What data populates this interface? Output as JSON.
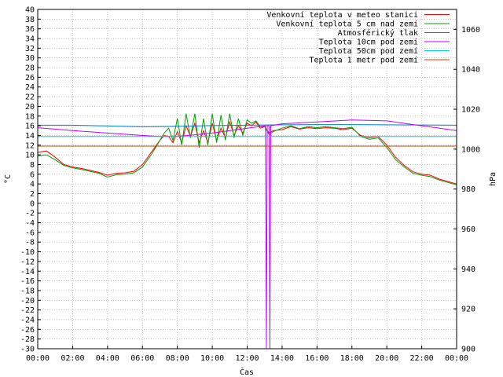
{
  "chart_data": {
    "type": "line",
    "xlabel": "Čas",
    "ylabel": "°C",
    "y2label": "hPa",
    "xlim": [
      0,
      24
    ],
    "ylim": [
      -30,
      40
    ],
    "y2lim": [
      900,
      1070
    ],
    "xticks": [
      "00:00",
      "02:00",
      "04:00",
      "06:00",
      "08:00",
      "10:00",
      "12:00",
      "14:00",
      "16:00",
      "18:00",
      "20:00",
      "22:00",
      "00:00"
    ],
    "yticks": [
      40,
      38,
      36,
      34,
      32,
      30,
      28,
      26,
      24,
      22,
      20,
      18,
      16,
      14,
      12,
      10,
      8,
      6,
      4,
      2,
      0,
      -2,
      -4,
      -6,
      -8,
      -10,
      -12,
      -14,
      -16,
      -18,
      -20,
      -22,
      -24,
      -26,
      -28,
      -30
    ],
    "y2ticks": [
      1060,
      1040,
      1020,
      1000,
      980,
      960,
      940,
      920,
      900
    ],
    "grid": true,
    "legend": "top-right",
    "series": [
      {
        "name": "Venkovní teplota v meteo stanici",
        "color": "#ff0000",
        "axis": "left",
        "x": [
          0,
          0.5,
          1,
          1.5,
          2,
          2.5,
          3,
          3.5,
          4,
          4.5,
          5,
          5.5,
          6,
          6.5,
          7,
          7.25,
          7.5,
          7.75,
          8,
          8.25,
          8.5,
          8.75,
          9,
          9.25,
          9.5,
          9.75,
          10,
          10.25,
          10.5,
          10.75,
          11,
          11.25,
          11.5,
          11.75,
          12,
          12.25,
          12.5,
          12.75,
          13,
          13.25,
          13.5,
          14,
          14.5,
          15,
          15.5,
          16,
          16.5,
          17,
          17.5,
          18,
          18.5,
          19,
          19.5,
          20,
          20.5,
          21,
          21.5,
          22,
          22.5,
          23,
          23.5,
          24
        ],
        "y": [
          10.5,
          10.8,
          9.5,
          8,
          7.5,
          7.2,
          6.8,
          6.4,
          5.8,
          6.2,
          6.3,
          6.6,
          8,
          10.5,
          13,
          14,
          13.8,
          12.5,
          14.8,
          12.5,
          16,
          13.8,
          16.5,
          12.5,
          15,
          12.5,
          16.5,
          13,
          15.5,
          13.5,
          16.8,
          14,
          16,
          14.5,
          16.5,
          16,
          16.8,
          15.5,
          15.8,
          14.5,
          15,
          15.2,
          15.8,
          15.3,
          15.6,
          15.4,
          15.6,
          15.5,
          15.2,
          15.5,
          14,
          13.5,
          13.8,
          12,
          9.5,
          7.8,
          6.5,
          6,
          5.8,
          5,
          4.5,
          4
        ]
      },
      {
        "name": "Venkovní teplota 5 cm nad zemí",
        "color": "#00a000",
        "axis": "left",
        "x": [
          0,
          0.5,
          1,
          1.5,
          2,
          2.5,
          3,
          3.5,
          4,
          4.5,
          5,
          5.5,
          6,
          6.5,
          7,
          7.25,
          7.5,
          7.75,
          8,
          8.25,
          8.5,
          8.75,
          9,
          9.25,
          9.5,
          9.75,
          10,
          10.25,
          10.5,
          10.75,
          11,
          11.25,
          11.5,
          11.75,
          12,
          12.25,
          12.5,
          12.75,
          13,
          13.25,
          13.5,
          14,
          14.5,
          15,
          15.5,
          16,
          16.5,
          17,
          17.5,
          18,
          18.5,
          19,
          19.5,
          20,
          20.5,
          21,
          21.5,
          22,
          22.5,
          23,
          23.5,
          24
        ],
        "y": [
          9.8,
          10,
          9,
          7.8,
          7.3,
          7,
          6.6,
          6.2,
          5.4,
          5.9,
          6,
          6.3,
          7.5,
          10,
          13,
          14.5,
          15.5,
          13,
          17.5,
          12,
          18.5,
          13.5,
          18.5,
          11.5,
          17.5,
          12,
          18.5,
          12.5,
          18.2,
          13,
          18.5,
          13.5,
          17.5,
          14,
          17.2,
          16.5,
          17,
          15.8,
          15.8,
          14.2,
          14.8,
          15.5,
          16,
          15.4,
          15.8,
          15.6,
          15.8,
          15.6,
          15.4,
          15.7,
          13.8,
          13.2,
          13.5,
          11.5,
          9,
          7.5,
          6.2,
          5.8,
          5.5,
          4.8,
          4.3,
          3.8
        ]
      },
      {
        "name": "Atmosférický tlak",
        "color": "#0080c0",
        "axis": "right",
        "x": [
          0,
          2,
          4,
          6,
          8,
          10,
          12,
          14,
          16,
          18,
          20,
          22,
          24
        ],
        "y": [
          1012,
          1012,
          1011.6,
          1011.2,
          1011.4,
          1011.8,
          1012,
          1012.2,
          1012.3,
          1012.3,
          1012.2,
          1012.1,
          1012
        ]
      },
      {
        "name": "Teplota 10cm pod zemí",
        "color": "#c000ff",
        "axis": "left",
        "x": [
          0,
          2,
          4,
          6,
          7,
          8,
          10,
          12,
          13.05,
          13.1,
          13.15,
          13.25,
          13.3,
          13.35,
          14,
          16,
          18,
          20,
          22,
          24
        ],
        "y": [
          15.6,
          15,
          14.5,
          14,
          13.8,
          13.8,
          14.5,
          15.5,
          16,
          -30,
          16,
          16,
          -30,
          16,
          16.4,
          16.8,
          17.2,
          17,
          16,
          15
        ]
      },
      {
        "name": "Teplota 50cm pod zemí",
        "color": "#00d0d0",
        "axis": "left",
        "x": [
          0,
          6,
          12,
          18,
          24
        ],
        "y": [
          13.8,
          13.8,
          13.8,
          13.8,
          13.8
        ]
      },
      {
        "name": "Teplota 1 metr pod zemí",
        "color": "#d04000",
        "axis": "left",
        "x": [
          0,
          6,
          12,
          18,
          24
        ],
        "y": [
          11.8,
          11.8,
          11.8,
          11.8,
          11.8
        ]
      }
    ]
  }
}
